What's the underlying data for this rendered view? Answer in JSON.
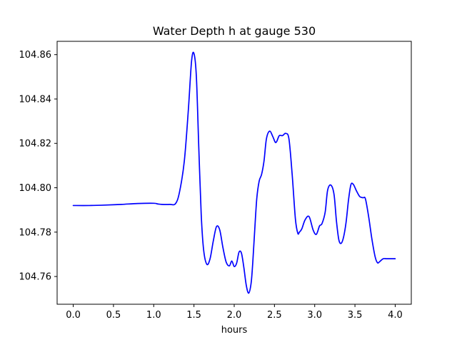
{
  "chart_data": {
    "type": "line",
    "title": "Water Depth h at gauge 530",
    "xlabel": "hours",
    "ylabel": "",
    "xlim": [
      -0.2,
      4.2
    ],
    "ylim": [
      104.7475,
      104.866
    ],
    "x_ticks": [
      0.0,
      0.5,
      1.0,
      1.5,
      2.0,
      2.5,
      3.0,
      3.5,
      4.0
    ],
    "x_tick_labels": [
      "0.0",
      "0.5",
      "1.0",
      "1.5",
      "2.0",
      "2.5",
      "3.0",
      "3.5",
      "4.0"
    ],
    "y_ticks": [
      104.76,
      104.78,
      104.8,
      104.82,
      104.84,
      104.86
    ],
    "y_tick_labels": [
      "104.76",
      "104.78",
      "104.80",
      "104.82",
      "104.84",
      "104.86"
    ],
    "grid": false,
    "legend": "none",
    "series": [
      {
        "color": "#0000ff",
        "x": [
          0.0,
          0.2,
          0.4,
          0.6,
          0.8,
          1.0,
          1.05,
          1.1,
          1.2,
          1.27,
          1.32,
          1.38,
          1.43,
          1.47,
          1.5,
          1.53,
          1.56,
          1.59,
          1.62,
          1.66,
          1.7,
          1.74,
          1.78,
          1.82,
          1.86,
          1.9,
          1.94,
          1.97,
          2.0,
          2.03,
          2.06,
          2.09,
          2.12,
          2.15,
          2.18,
          2.21,
          2.23,
          2.25,
          2.28,
          2.31,
          2.34,
          2.37,
          2.4,
          2.44,
          2.48,
          2.51,
          2.53,
          2.56,
          2.6,
          2.64,
          2.68,
          2.72,
          2.76,
          2.79,
          2.81,
          2.84,
          2.88,
          2.93,
          2.98,
          3.02,
          3.06,
          3.09,
          3.13,
          3.16,
          3.2,
          3.24,
          3.27,
          3.3,
          3.33,
          3.36,
          3.39,
          3.42,
          3.45,
          3.48,
          3.52,
          3.56,
          3.6,
          3.63,
          3.67,
          3.71,
          3.75,
          3.78,
          3.81,
          3.85,
          3.89,
          3.93,
          3.96,
          4.0
        ],
        "y": [
          104.792,
          104.792,
          104.7922,
          104.7925,
          104.7929,
          104.793,
          104.7927,
          104.7925,
          104.7925,
          104.7928,
          104.798,
          104.812,
          104.835,
          104.857,
          104.8605,
          104.85,
          104.818,
          104.788,
          104.772,
          104.7655,
          104.768,
          104.776,
          104.7825,
          104.781,
          104.773,
          104.7665,
          104.7648,
          104.767,
          104.7645,
          104.766,
          104.771,
          104.7705,
          104.764,
          104.756,
          104.7525,
          104.757,
          104.766,
          104.778,
          104.795,
          104.803,
          104.806,
          104.812,
          104.822,
          104.8255,
          104.823,
          104.8205,
          104.821,
          104.8235,
          104.8235,
          104.8245,
          104.822,
          104.806,
          104.786,
          104.7795,
          104.78,
          104.7815,
          104.7855,
          104.787,
          104.781,
          104.779,
          104.7828,
          104.7838,
          104.789,
          104.7988,
          104.8012,
          104.797,
          104.785,
          104.7765,
          104.775,
          104.778,
          104.7845,
          104.7945,
          104.8014,
          104.8015,
          104.7985,
          104.796,
          104.7955,
          104.795,
          104.787,
          104.777,
          104.769,
          104.7662,
          104.7668,
          104.768,
          104.768,
          104.768,
          104.768,
          104.768
        ]
      }
    ]
  }
}
